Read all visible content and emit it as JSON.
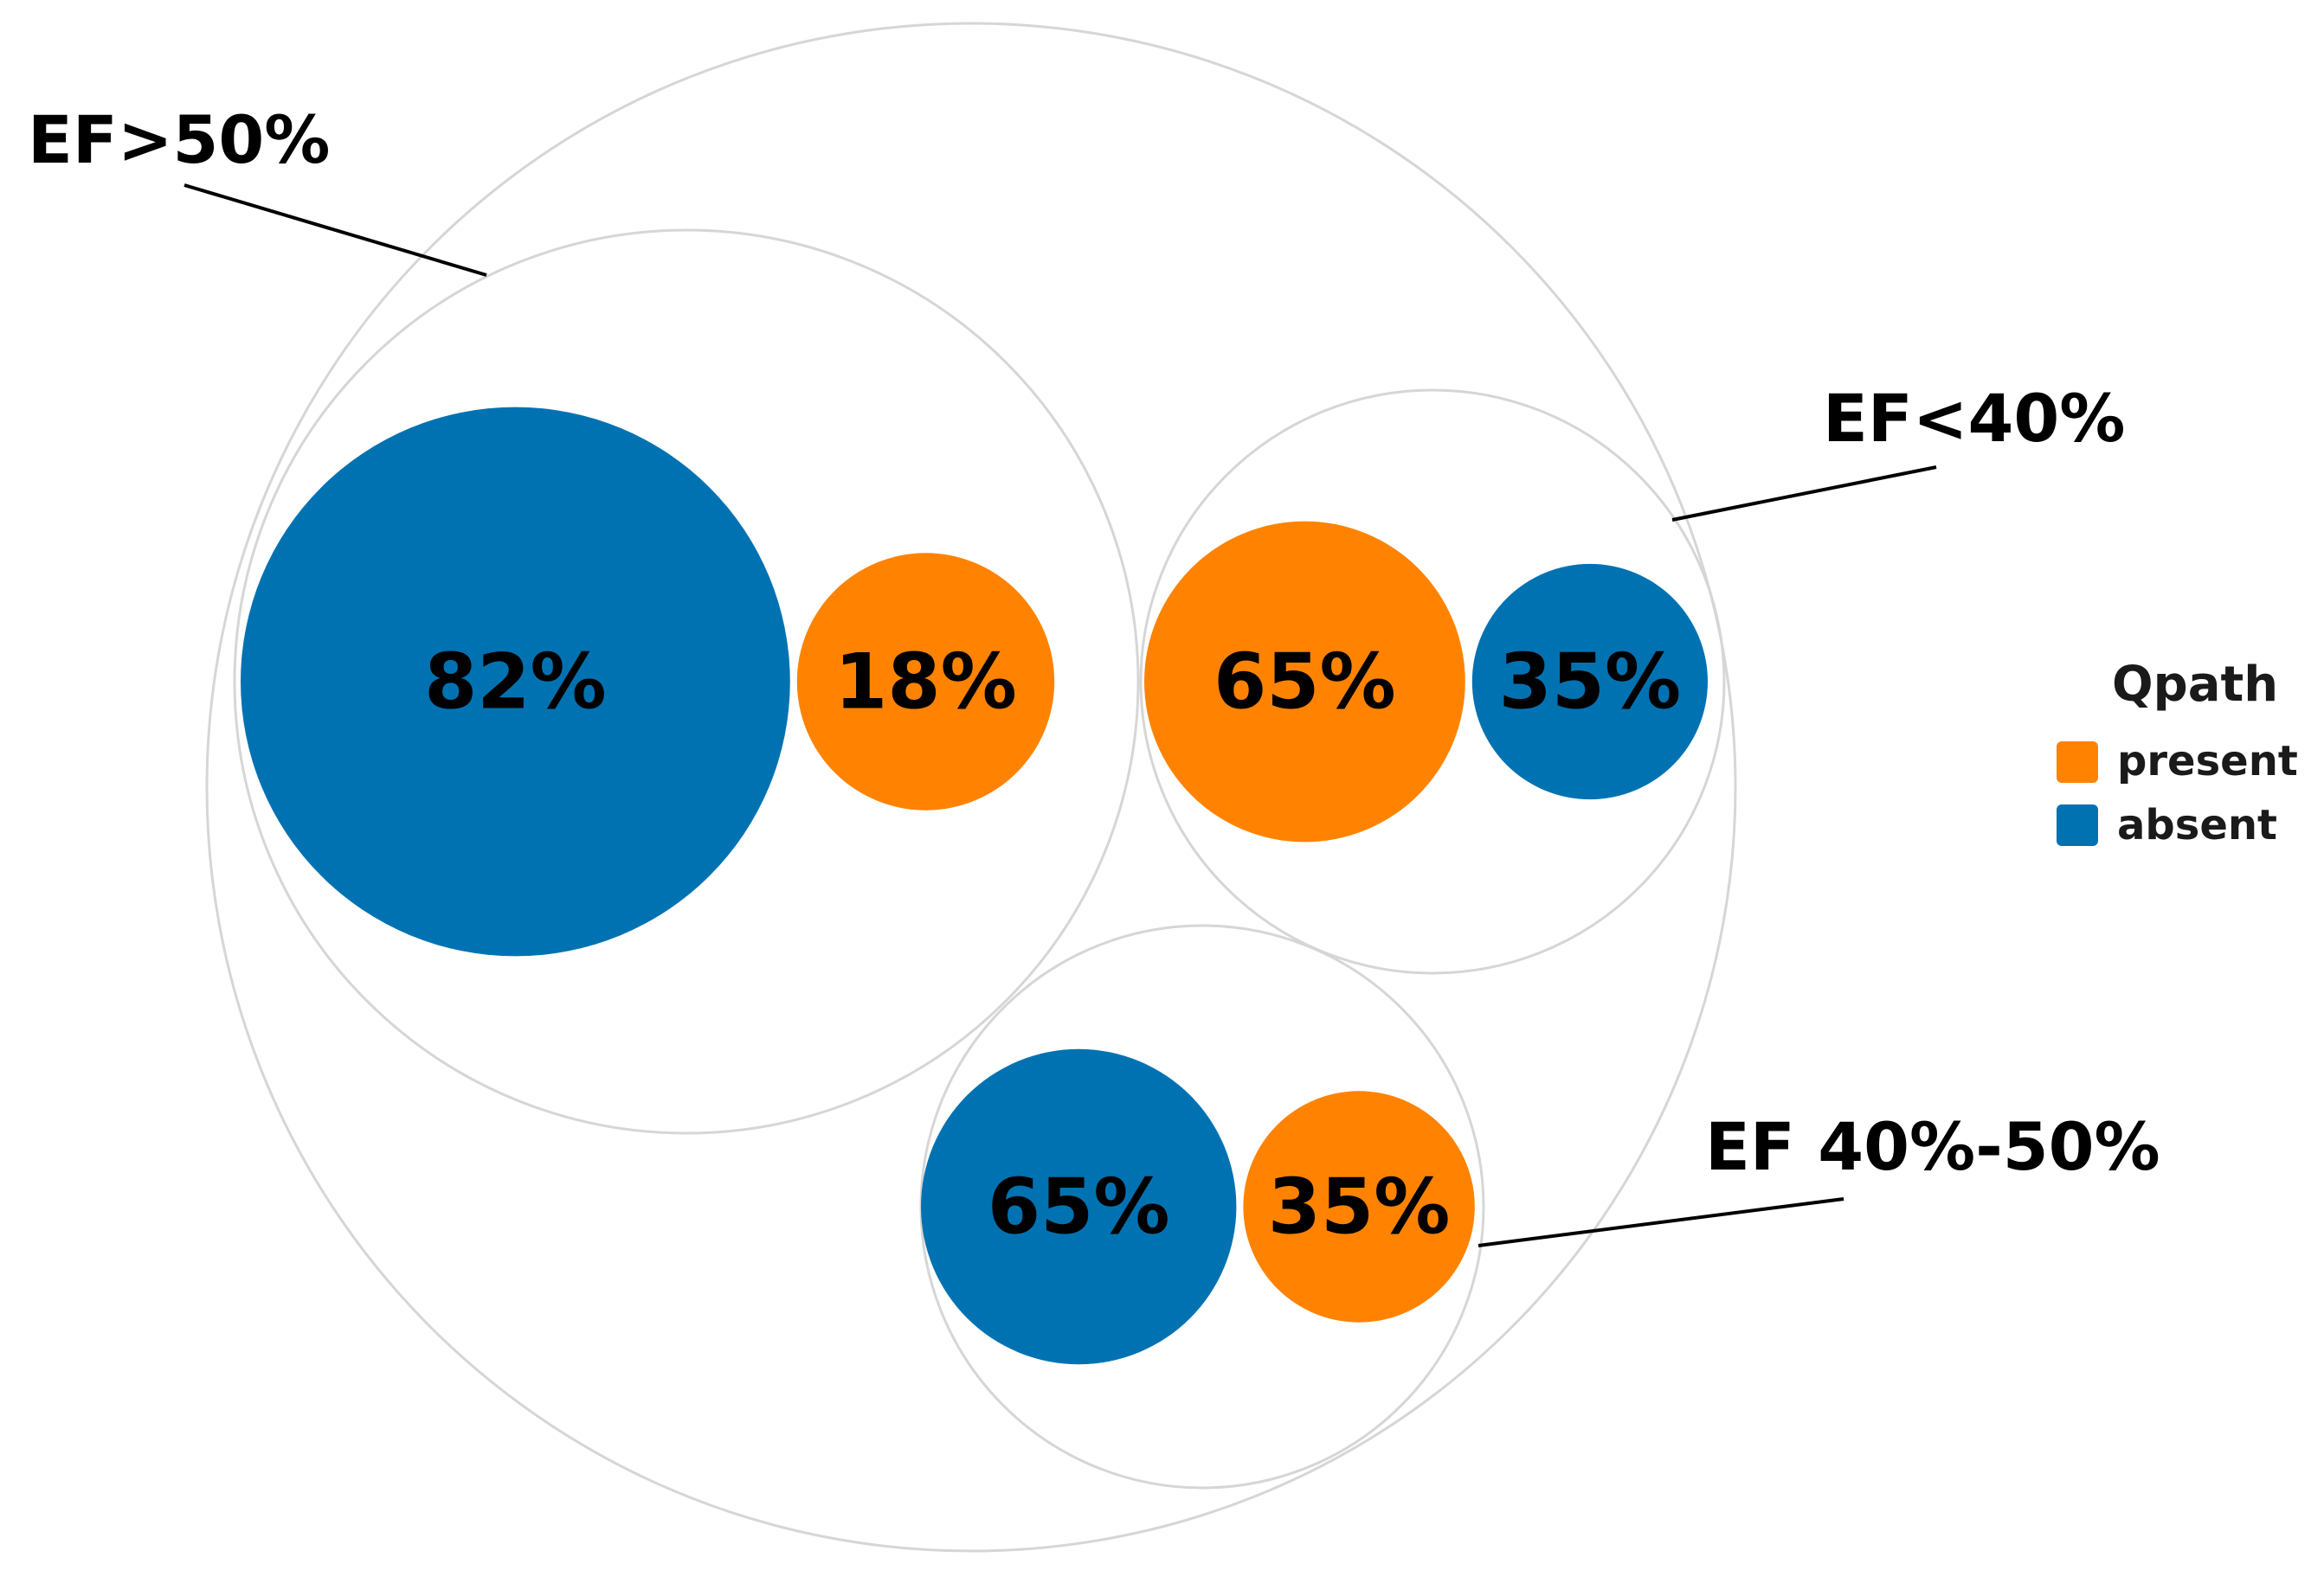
{
  "chart_data": {
    "type": "circle-packing",
    "title": "",
    "colors": {
      "present": "#ff8300",
      "absent": "#0072b2"
    },
    "legend": {
      "title": "Qpath",
      "position": "right",
      "items": [
        {
          "key": "present",
          "label": "present"
        },
        {
          "key": "absent",
          "label": "absent"
        }
      ]
    },
    "groups": [
      {
        "label": "EF>50%",
        "children": [
          {
            "category": "absent",
            "label": "82%",
            "value": 82
          },
          {
            "category": "present",
            "label": "18%",
            "value": 18
          }
        ]
      },
      {
        "label": "EF<40%",
        "children": [
          {
            "category": "present",
            "label": "65%",
            "value": 65
          },
          {
            "category": "absent",
            "label": "35%",
            "value": 35
          }
        ]
      },
      {
        "label": "EF 40%-50%",
        "children": [
          {
            "category": "absent",
            "label": "65%",
            "value": 65
          },
          {
            "category": "present",
            "label": "35%",
            "value": 35
          }
        ]
      }
    ]
  }
}
